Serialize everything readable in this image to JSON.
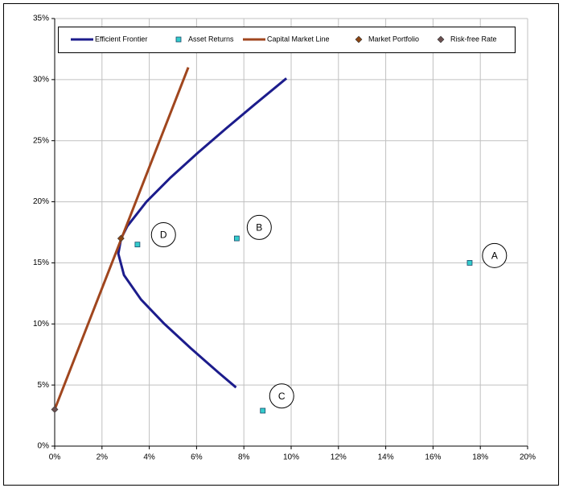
{
  "chart_data": {
    "type": "scatter",
    "xlim": [
      0,
      20
    ],
    "ylim": [
      0,
      35
    ],
    "xticks": [
      {
        "value": 0,
        "label": "0%"
      },
      {
        "value": 2,
        "label": "2%"
      },
      {
        "value": 4,
        "label": "4%"
      },
      {
        "value": 6,
        "label": "6%"
      },
      {
        "value": 8,
        "label": "8%"
      },
      {
        "value": 10,
        "label": "10%"
      },
      {
        "value": 12,
        "label": "12%"
      },
      {
        "value": 14,
        "label": "14%"
      },
      {
        "value": 16,
        "label": "16%"
      },
      {
        "value": 18,
        "label": "18%"
      },
      {
        "value": 20,
        "label": "20%"
      }
    ],
    "yticks": [
      {
        "value": 0,
        "label": "0%"
      },
      {
        "value": 5,
        "label": "5%"
      },
      {
        "value": 10,
        "label": "10%"
      },
      {
        "value": 15,
        "label": "15%"
      },
      {
        "value": 20,
        "label": "20%"
      },
      {
        "value": 25,
        "label": "25%"
      },
      {
        "value": 30,
        "label": "30%"
      },
      {
        "value": 35,
        "label": "35%"
      }
    ],
    "grid": true,
    "legend": "top",
    "series": [
      {
        "name": "Efficient Frontier",
        "kind": "line",
        "color": "#1c1c8c",
        "x": [
          7.67,
          6.94,
          5.76,
          4.64,
          3.65,
          2.93,
          2.69,
          2.81,
          3.07,
          3.88,
          4.91,
          6.05,
          7.25,
          8.48,
          9.8
        ],
        "y": [
          4.8,
          6,
          8,
          10,
          12,
          14,
          15.75,
          17,
          18,
          20,
          22,
          24,
          26,
          28,
          30.1
        ]
      },
      {
        "name": "Asset Returns",
        "kind": "square",
        "color": "#33cccc",
        "x": [
          17.55,
          7.7,
          8.8,
          3.5
        ],
        "y": [
          15.0,
          17.0,
          2.9,
          16.5
        ]
      },
      {
        "name": "Capital Market Line",
        "kind": "line",
        "color": "#a0461e",
        "x": [
          0,
          5.65
        ],
        "y": [
          3,
          31.0
        ]
      },
      {
        "name": "Market Portfolio",
        "kind": "diamond",
        "color": "#8b4513",
        "x": [
          2.8
        ],
        "y": [
          17
        ]
      },
      {
        "name": "Risk-free Rate",
        "kind": "diamond",
        "color": "#6b5050",
        "x": [
          0
        ],
        "y": [
          3
        ]
      }
    ],
    "annotations": [
      {
        "text": "A",
        "x": 18.6,
        "y": 15.6
      },
      {
        "text": "B",
        "x": 8.65,
        "y": 17.9
      },
      {
        "text": "C",
        "x": 9.6,
        "y": 4.1
      },
      {
        "text": "D",
        "x": 4.6,
        "y": 17.3
      }
    ]
  }
}
